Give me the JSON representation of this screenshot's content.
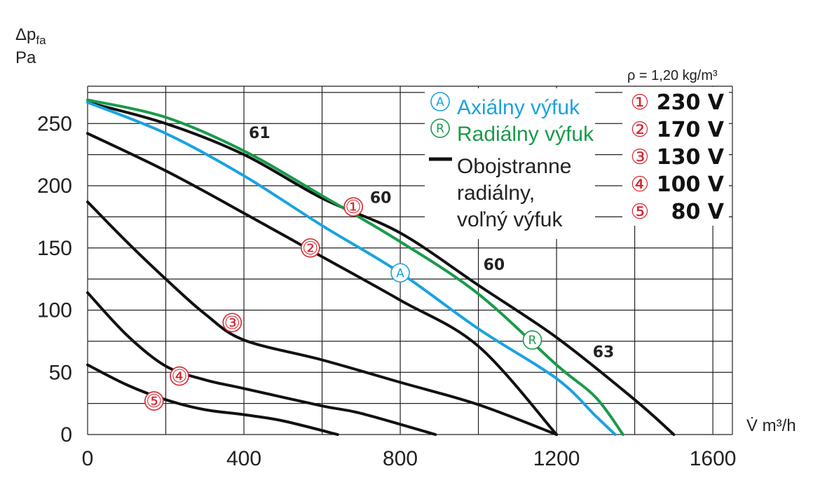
{
  "chart_data": {
    "type": "line",
    "ylabel": "Δp",
    "ylabel_sub": "fa",
    "yunit": "Pa",
    "xlabel": "V̇ m³/h",
    "xlim": [
      0,
      1650
    ],
    "ylim": [
      0,
      280
    ],
    "xticks": [
      0,
      400,
      800,
      1200,
      1600
    ],
    "yticks": [
      0,
      50,
      100,
      150,
      200,
      250
    ],
    "x_grid_step": 200,
    "y_grid_step": 25,
    "grid": true,
    "density_note": "ρ = 1,20 kg/m³",
    "legend": [
      {
        "marker": "A",
        "label": "Axiálny výfuk",
        "color": "#1aa3e0"
      },
      {
        "marker": "R",
        "label": "Radiálny výfuk",
        "color": "#1a9a4a"
      },
      {
        "marker": "line",
        "label_lines": [
          "Obojstranne",
          "radiálny,",
          "voľný výfuk"
        ],
        "color": "#111111"
      }
    ],
    "voltages": [
      {
        "symbol": "①",
        "label": "230 V"
      },
      {
        "symbol": "②",
        "label": "170 V"
      },
      {
        "symbol": "③",
        "label": "130 V"
      },
      {
        "symbol": "④",
        "label": "100 V"
      },
      {
        "symbol": "⑤",
        "label": "80 V"
      }
    ],
    "series": [
      {
        "symbol": "①",
        "color": "#111111",
        "x": [
          0,
          200,
          400,
          600,
          800,
          1000,
          1200,
          1400,
          1500
        ],
        "y": [
          267,
          250,
          225,
          190,
          162,
          120,
          78,
          28,
          0
        ]
      },
      {
        "symbol": "②",
        "color": "#111111",
        "x": [
          0,
          200,
          400,
          600,
          800,
          1000,
          1200
        ],
        "y": [
          242,
          212,
          178,
          143,
          108,
          71,
          0
        ]
      },
      {
        "symbol": "③",
        "color": "#111111",
        "x": [
          0,
          100,
          200,
          300,
          400,
          600,
          800,
          1000,
          1200
        ],
        "y": [
          187,
          155,
          125,
          97,
          76,
          60,
          42,
          24,
          0
        ]
      },
      {
        "symbol": "④",
        "color": "#111111",
        "x": [
          0,
          100,
          200,
          300,
          400,
          600,
          700,
          890
        ],
        "y": [
          114,
          80,
          55,
          44,
          37,
          23,
          17,
          0
        ]
      },
      {
        "symbol": "⑤",
        "color": "#111111",
        "x": [
          0,
          100,
          200,
          300,
          400,
          500,
          640
        ],
        "y": [
          56,
          40,
          28,
          20,
          16,
          11,
          0
        ]
      },
      {
        "symbol": "A",
        "color": "#1aa3e0",
        "x": [
          0,
          200,
          400,
          600,
          800,
          1000,
          1200,
          1300,
          1350
        ],
        "y": [
          267,
          242,
          208,
          168,
          130,
          85,
          45,
          15,
          0
        ]
      },
      {
        "symbol": "R",
        "color": "#1a9a4a",
        "x": [
          0,
          200,
          400,
          600,
          800,
          1000,
          1200,
          1300,
          1370
        ],
        "y": [
          269,
          255,
          228,
          192,
          155,
          113,
          56,
          30,
          0
        ]
      }
    ],
    "curve_labels": [
      {
        "text": "61",
        "x": 440,
        "y": 240
      },
      {
        "text": "60",
        "x": 750,
        "y": 188
      },
      {
        "text": "60",
        "x": 1040,
        "y": 134
      },
      {
        "text": "63",
        "x": 1320,
        "y": 64
      }
    ],
    "series_markers": [
      {
        "text": "①",
        "x": 680,
        "y": 183,
        "color": "#d8262e"
      },
      {
        "text": "②",
        "x": 570,
        "y": 150,
        "color": "#d8262e"
      },
      {
        "text": "③",
        "x": 370,
        "y": 90,
        "color": "#d8262e"
      },
      {
        "text": "④",
        "x": 235,
        "y": 47,
        "color": "#d8262e"
      },
      {
        "text": "⑤",
        "x": 170,
        "y": 27,
        "color": "#d8262e"
      },
      {
        "text": "A",
        "x": 800,
        "y": 130,
        "color": "#1aa3e0"
      },
      {
        "text": "R",
        "x": 1138,
        "y": 76,
        "color": "#1a9a4a"
      }
    ]
  }
}
